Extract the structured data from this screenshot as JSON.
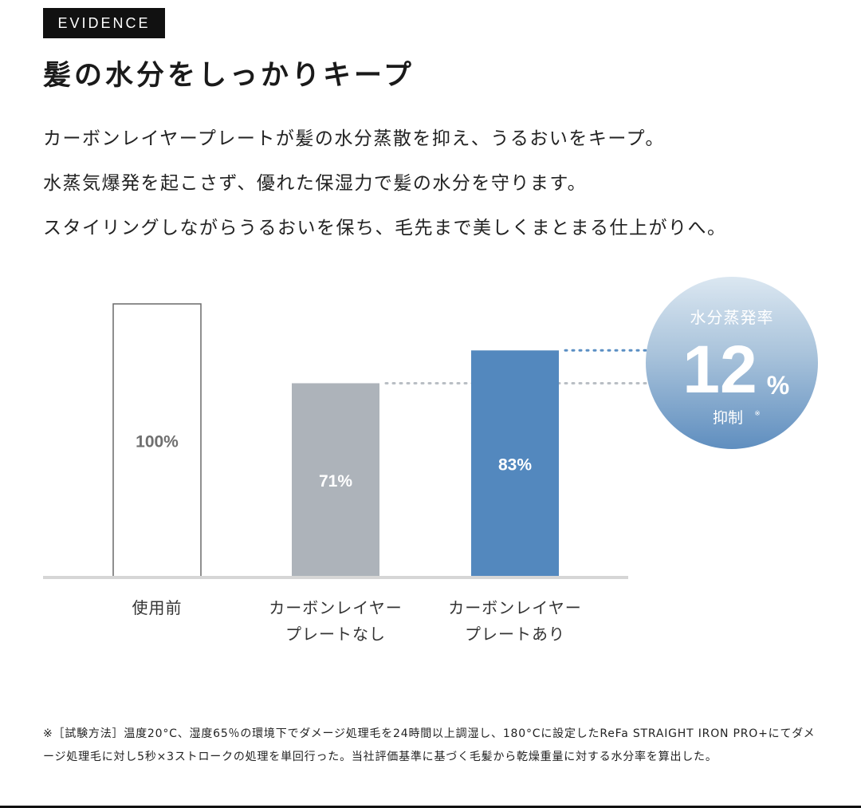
{
  "badge": "EVIDENCE",
  "title": "髪の水分をしっかりキープ",
  "description": [
    "カーボンレイヤープレートが髪の水分蒸散を抑え、うるおいをキープ。",
    "水蒸気爆発を起こさず、優れた保湿力で髪の水分を守ります。",
    "スタイリングしながらうるおいを保ち、毛先まで美しくまとまる仕上がりへ。"
  ],
  "chart_data": {
    "type": "bar",
    "categories": [
      [
        "使用前"
      ],
      [
        "カーボンレイヤー",
        "プレートなし"
      ],
      [
        "カーボンレイヤー",
        "プレートあり"
      ]
    ],
    "values": [
      100,
      71,
      83
    ],
    "data_labels": [
      "100%",
      "71%",
      "83%"
    ],
    "ylim": [
      0,
      100
    ],
    "grid": false,
    "colors": [
      "#ffffff",
      "#adb3ba",
      "#5388be"
    ],
    "callout": {
      "label": "水分蒸発率",
      "value": "12",
      "unit": "%",
      "suffix": "抑制",
      "mark": "※"
    }
  },
  "footnote": "※［試験方法］温度20°C、湿度65％の環境下でダメージ処理毛を24時間以上調湿し、180°Cに設定したReFa STRAIGHT IRON PRO+にてダメージ処理毛に対し5秒×3ストロークの処理を単回行った。当社評価基準に基づく毛髪から乾燥重量に対する水分率を算出した。"
}
